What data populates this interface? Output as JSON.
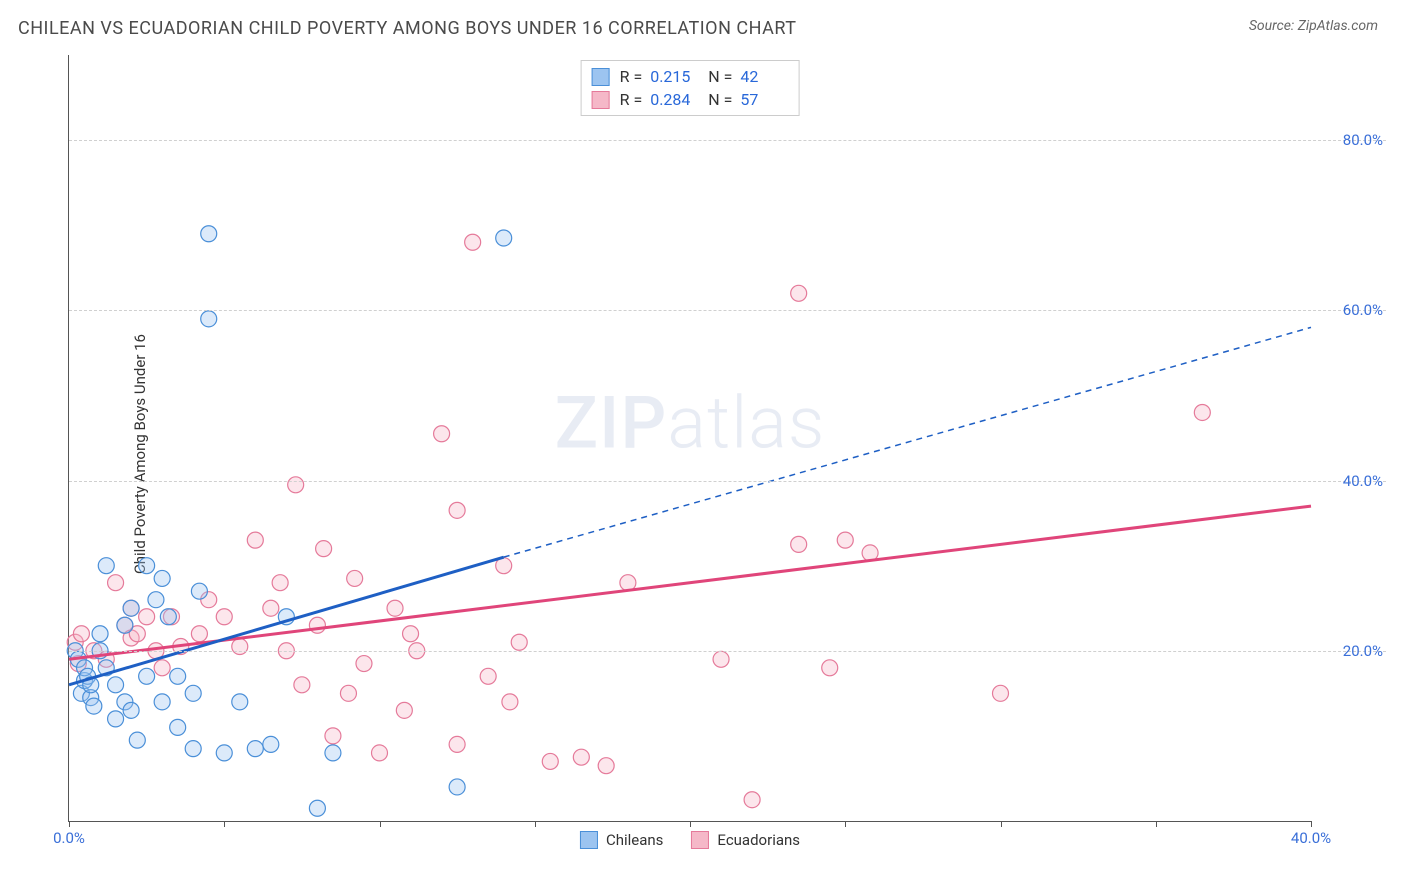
{
  "title": "CHILEAN VS ECUADORIAN CHILD POVERTY AMONG BOYS UNDER 16 CORRELATION CHART",
  "source": "Source: ZipAtlas.com",
  "y_axis_label": "Child Poverty Among Boys Under 16",
  "watermark_a": "ZIP",
  "watermark_b": "atlas",
  "chart": {
    "type": "scatter",
    "xlim": [
      0,
      40
    ],
    "ylim": [
      0,
      90
    ],
    "x_ticks": [
      0,
      5,
      10,
      15,
      20,
      25,
      30,
      35,
      40
    ],
    "x_tick_labels": {
      "0": "0.0%",
      "40": "40.0%"
    },
    "y_gridlines": [
      20,
      40,
      60,
      80
    ],
    "y_tick_labels": {
      "20": "20.0%",
      "40": "40.0%",
      "60": "60.0%",
      "80": "80.0%"
    },
    "background_color": "#ffffff",
    "grid_color": "#d0d0d0",
    "axis_color": "#555555",
    "tick_label_color": "#3a6fd8",
    "marker_radius": 8,
    "marker_stroke_width": 1.2,
    "marker_fill_opacity": 0.35,
    "trend_line_width": 3
  },
  "series": {
    "chileans": {
      "label": "Chileans",
      "fill": "#9cc4f0",
      "stroke": "#4a8fd8",
      "line_color": "#1e5fc4",
      "R_label": "R =",
      "R": "0.215",
      "N_label": "N =",
      "N": "42",
      "trend": {
        "x1": 0,
        "y1": 16,
        "x2_solid": 14,
        "y2_solid": 31,
        "x2": 40,
        "y2": 58,
        "dashed_from_solid": true
      },
      "points": [
        [
          0.2,
          20
        ],
        [
          0.3,
          19
        ],
        [
          0.4,
          15
        ],
        [
          0.5,
          16.5
        ],
        [
          0.5,
          18
        ],
        [
          0.6,
          17
        ],
        [
          0.7,
          14.5
        ],
        [
          0.7,
          16
        ],
        [
          0.8,
          13.5
        ],
        [
          1.0,
          22
        ],
        [
          1.0,
          20
        ],
        [
          1.2,
          18
        ],
        [
          1.2,
          30
        ],
        [
          1.5,
          16
        ],
        [
          1.5,
          12
        ],
        [
          1.8,
          14
        ],
        [
          1.8,
          23
        ],
        [
          2.0,
          25
        ],
        [
          2.0,
          13
        ],
        [
          2.2,
          9.5
        ],
        [
          2.5,
          30
        ],
        [
          2.5,
          17
        ],
        [
          2.8,
          26
        ],
        [
          3.0,
          14
        ],
        [
          3.0,
          28.5
        ],
        [
          3.2,
          24
        ],
        [
          3.5,
          11
        ],
        [
          3.5,
          17
        ],
        [
          4.0,
          15
        ],
        [
          4.0,
          8.5
        ],
        [
          4.2,
          27
        ],
        [
          4.5,
          59
        ],
        [
          4.5,
          69
        ],
        [
          5.0,
          8
        ],
        [
          5.5,
          14
        ],
        [
          6.0,
          8.5
        ],
        [
          6.5,
          9
        ],
        [
          7.0,
          24
        ],
        [
          8.0,
          1.5
        ],
        [
          8.5,
          8
        ],
        [
          12.5,
          4
        ],
        [
          14.0,
          68.5
        ]
      ]
    },
    "ecuadorians": {
      "label": "Ecuadorians",
      "fill": "#f5b8c8",
      "stroke": "#e57a9a",
      "line_color": "#e0457a",
      "R_label": "R =",
      "R": "0.284",
      "N_label": "N =",
      "N": "57",
      "trend": {
        "x1": 0,
        "y1": 19,
        "x2_solid": 40,
        "y2_solid": 37,
        "x2": 40,
        "y2": 37,
        "dashed_from_solid": false
      },
      "points": [
        [
          0.2,
          21
        ],
        [
          0.3,
          18.5
        ],
        [
          0.4,
          22
        ],
        [
          0.8,
          20
        ],
        [
          1.2,
          19
        ],
        [
          1.5,
          28
        ],
        [
          1.8,
          23
        ],
        [
          2.0,
          21.5
        ],
        [
          2.0,
          25
        ],
        [
          2.2,
          22
        ],
        [
          2.5,
          24
        ],
        [
          2.8,
          20
        ],
        [
          3.0,
          18
        ],
        [
          3.3,
          24
        ],
        [
          3.6,
          20.5
        ],
        [
          4.2,
          22
        ],
        [
          4.5,
          26
        ],
        [
          5.0,
          24
        ],
        [
          5.5,
          20.5
        ],
        [
          6.0,
          33
        ],
        [
          6.5,
          25
        ],
        [
          6.8,
          28
        ],
        [
          7.0,
          20
        ],
        [
          7.3,
          39.5
        ],
        [
          7.5,
          16
        ],
        [
          8.0,
          23
        ],
        [
          8.2,
          32
        ],
        [
          8.5,
          10
        ],
        [
          9.0,
          15
        ],
        [
          9.2,
          28.5
        ],
        [
          9.5,
          18.5
        ],
        [
          10.0,
          8
        ],
        [
          10.5,
          25
        ],
        [
          10.8,
          13
        ],
        [
          11.0,
          22
        ],
        [
          11.2,
          20
        ],
        [
          12.0,
          45.5
        ],
        [
          12.5,
          9
        ],
        [
          12.5,
          36.5
        ],
        [
          13.0,
          68
        ],
        [
          13.5,
          17
        ],
        [
          14.0,
          30
        ],
        [
          14.2,
          14
        ],
        [
          14.5,
          21
        ],
        [
          15.5,
          7
        ],
        [
          16.5,
          7.5
        ],
        [
          17.3,
          6.5
        ],
        [
          18.0,
          28
        ],
        [
          21.0,
          19
        ],
        [
          22.0,
          2.5
        ],
        [
          23.5,
          32.5
        ],
        [
          23.5,
          62
        ],
        [
          24.5,
          18
        ],
        [
          25.0,
          33
        ],
        [
          25.8,
          31.5
        ],
        [
          30.0,
          15
        ],
        [
          36.5,
          48
        ]
      ]
    }
  },
  "bottom_legend": [
    {
      "key": "chileans"
    },
    {
      "key": "ecuadorians"
    }
  ]
}
